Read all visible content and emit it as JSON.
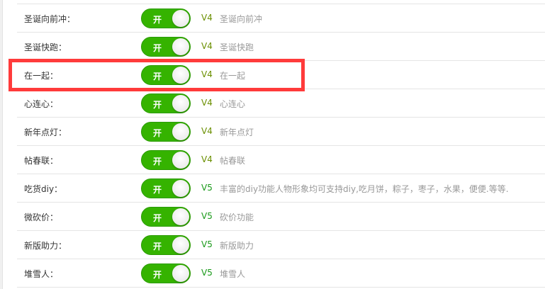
{
  "toggle_label": "开",
  "colors": {
    "toggle_on": "#35b300",
    "v4": "#6a8f00",
    "v5": "#1a9a1a",
    "highlight": "#ff3b3b"
  },
  "highlighted_row": 2,
  "rows": [
    {
      "label": "圣诞向前冲：",
      "enabled": true,
      "version": "V4",
      "desc": "圣诞向前冲"
    },
    {
      "label": "圣诞快跑：",
      "enabled": true,
      "version": "V4",
      "desc": "圣诞快跑"
    },
    {
      "label": "在一起：",
      "enabled": true,
      "version": "V4",
      "desc": "在一起"
    },
    {
      "label": "心连心：",
      "enabled": true,
      "version": "V4",
      "desc": "心连心"
    },
    {
      "label": "新年点灯：",
      "enabled": true,
      "version": "V4",
      "desc": "新年点灯"
    },
    {
      "label": "帖春联：",
      "enabled": true,
      "version": "V4",
      "desc": "帖春联"
    },
    {
      "label": "吃货diy：",
      "enabled": true,
      "version": "V5",
      "desc": "丰富的diy功能人物形象均可支持diy,吃月饼，粽子，枣子，水果，便便.等等."
    },
    {
      "label": "微砍价：",
      "enabled": true,
      "version": "V5",
      "desc": "砍价功能"
    },
    {
      "label": "新版助力：",
      "enabled": true,
      "version": "V5",
      "desc": "新版助力"
    },
    {
      "label": "堆雪人：",
      "enabled": true,
      "version": "V5",
      "desc": "堆雪人"
    }
  ]
}
